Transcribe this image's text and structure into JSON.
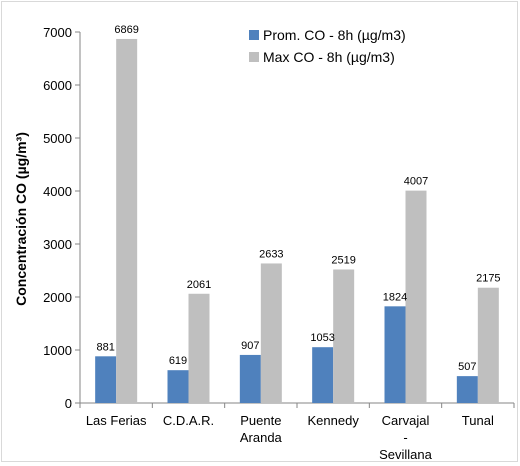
{
  "chart_data": {
    "type": "bar",
    "title": "",
    "xlabel": "",
    "ylabel": "Concentración CO (µg/m³)",
    "ylim": [
      0,
      7000
    ],
    "yticks": [
      0,
      1000,
      2000,
      3000,
      4000,
      5000,
      6000,
      7000
    ],
    "categories": [
      "Las Ferias",
      "C.D.A.R.",
      "Puente Aranda",
      "Kennedy",
      "Carvajal - Sevillana",
      "Tunal"
    ],
    "category_lines": [
      [
        "Las Ferias"
      ],
      [
        "C.D.A.R."
      ],
      [
        "Puente",
        "Aranda"
      ],
      [
        "Kennedy"
      ],
      [
        "Carvajal",
        "-",
        "Sevillana"
      ],
      [
        "Tunal"
      ]
    ],
    "series": [
      {
        "name": "Prom. CO - 8h  (µg/m3)",
        "color": "#4f81bd",
        "values": [
          881,
          619,
          907,
          1053,
          1824,
          507
        ]
      },
      {
        "name": "Max CO - 8h  (µg/m3)",
        "color": "#bfbfbf",
        "values": [
          6869,
          2061,
          2633,
          2519,
          4007,
          2175
        ]
      }
    ],
    "grid": false,
    "legend_position": "top-right"
  }
}
